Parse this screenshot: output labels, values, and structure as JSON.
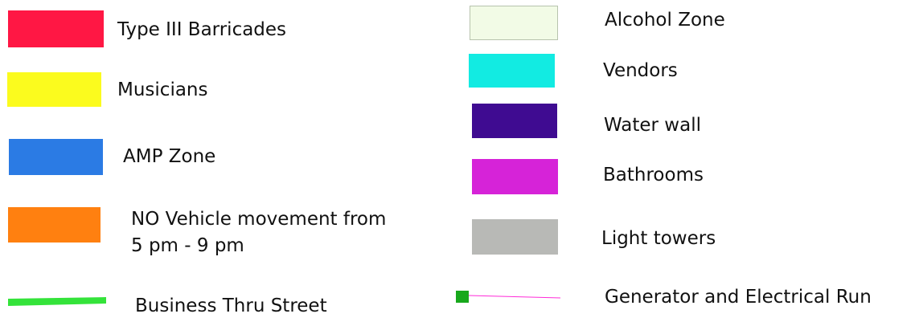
{
  "legend": {
    "left": [
      {
        "label": "Type III Barricades",
        "color": "#ff1744",
        "symbol": "fill"
      },
      {
        "label": "Musicians",
        "color": "#fbfb1e",
        "symbol": "fill"
      },
      {
        "label": "AMP Zone",
        "color": "#2b7be4",
        "symbol": "fill"
      },
      {
        "label_line1": "NO Vehicle movement from",
        "label_line2": "5 pm - 9 pm",
        "color": "#ff8010",
        "symbol": "fill"
      },
      {
        "label": "Business Thru Street",
        "color": "#34e33a",
        "symbol": "thick-line"
      }
    ],
    "right": [
      {
        "label": "Alcohol Zone",
        "color": "#f2fbe6",
        "border": "#b7c3ad",
        "symbol": "fill"
      },
      {
        "label": "Vendors",
        "color": "#12ebe2",
        "symbol": "fill"
      },
      {
        "label": "Water wall",
        "color": "#3f0b91",
        "symbol": "fill"
      },
      {
        "label": "Bathrooms",
        "color": "#d623d8",
        "symbol": "fill"
      },
      {
        "label": "Light towers",
        "color": "#b8b9b6",
        "symbol": "fill"
      },
      {
        "label": "Generator and Electrical Run",
        "color": "#ff2bd8",
        "marker_color": "#18a81c",
        "symbol": "marker-line"
      }
    ]
  }
}
